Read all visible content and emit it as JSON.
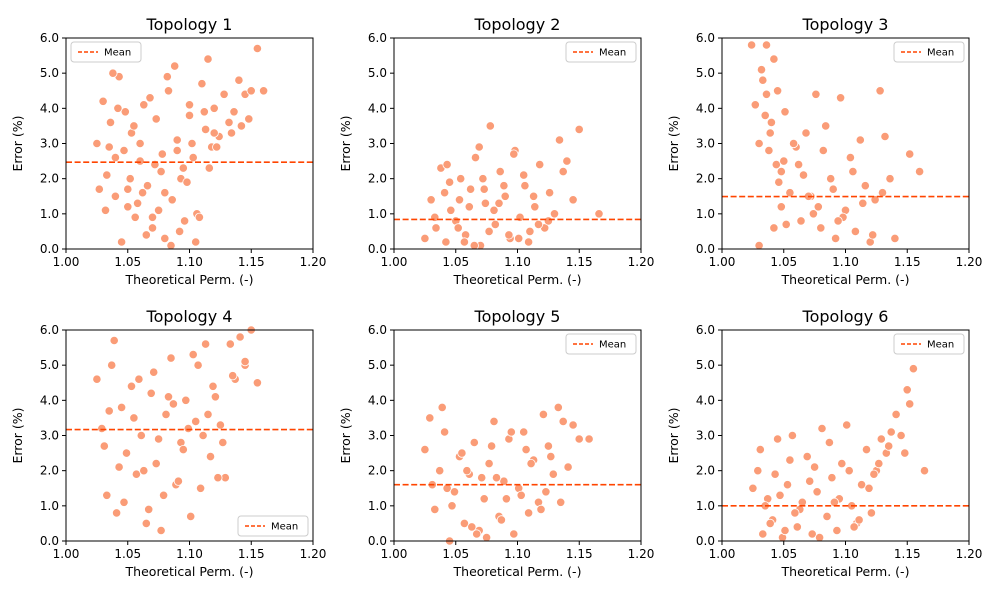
{
  "figure": {
    "background": "#ffffff",
    "marker_color": "#fa9c77",
    "marker_edge": "#ffffff",
    "mean_color": "#ff4500"
  },
  "chart_data": [
    {
      "type": "scatter",
      "title": "Topology 1",
      "xlabel": "Theoretical Perm. (-)",
      "ylabel": "Error (%)",
      "xlim": [
        1.0,
        1.2
      ],
      "ylim": [
        0.0,
        6.0
      ],
      "xticks": [
        "1.00",
        "1.05",
        "1.10",
        "1.15",
        "1.20"
      ],
      "yticks": [
        "0.0",
        "1.0",
        "2.0",
        "3.0",
        "4.0",
        "5.0",
        "6.0"
      ],
      "mean": 2.47,
      "legend": {
        "label": "Mean",
        "position": "upper-left"
      },
      "x": [
        1.025,
        1.03,
        1.033,
        1.036,
        1.04,
        1.043,
        1.047,
        1.05,
        1.053,
        1.056,
        1.06,
        1.063,
        1.066,
        1.07,
        1.073,
        1.077,
        1.08,
        1.083,
        1.086,
        1.09,
        1.093,
        1.096,
        1.1,
        1.103,
        1.106,
        1.11,
        1.113,
        1.116,
        1.12,
        1.124,
        1.128,
        1.132,
        1.136,
        1.14,
        1.145,
        1.15,
        1.155,
        1.16,
        1.027,
        1.038,
        1.048,
        1.058,
        1.068,
        1.078,
        1.088,
        1.098,
        1.108,
        1.118,
        1.045,
        1.065,
        1.085,
        1.105,
        1.035,
        1.075,
        1.095,
        1.115,
        1.055,
        1.042,
        1.072,
        1.102,
        1.062,
        1.082,
        1.092,
        1.052,
        1.032,
        1.112,
        1.122,
        1.134,
        1.142,
        1.148,
        1.04,
        1.06,
        1.08,
        1.1,
        1.12,
        1.07,
        1.09,
        1.05
      ],
      "y": [
        3.0,
        4.2,
        2.1,
        3.6,
        1.5,
        4.9,
        2.8,
        1.2,
        3.3,
        0.9,
        2.5,
        4.1,
        1.8,
        0.6,
        3.7,
        2.2,
        0.3,
        4.5,
        1.4,
        3.1,
        2.0,
        0.8,
        3.8,
        2.6,
        1.0,
        4.7,
        3.4,
        2.3,
        4.0,
        3.2,
        4.4,
        3.6,
        3.9,
        4.8,
        4.4,
        4.5,
        5.7,
        4.5,
        1.7,
        5.0,
        3.9,
        1.3,
        4.3,
        2.7,
        5.2,
        1.9,
        0.9,
        2.9,
        0.2,
        0.4,
        0.1,
        0.2,
        2.9,
        1.1,
        2.3,
        5.4,
        3.5,
        4.0,
        2.4,
        3.0,
        1.6,
        4.9,
        0.5,
        2.0,
        1.1,
        3.9,
        2.9,
        3.3,
        3.5,
        3.7,
        2.6,
        3.0,
        1.6,
        4.1,
        3.3,
        0.9,
        2.8,
        1.7
      ]
    },
    {
      "type": "scatter",
      "title": "Topology 2",
      "xlabel": "Theoretical Perm. (-)",
      "ylabel": "Error (%)",
      "xlim": [
        1.0,
        1.2
      ],
      "ylim": [
        0.0,
        6.0
      ],
      "xticks": [
        "1.00",
        "1.05",
        "1.10",
        "1.15",
        "1.20"
      ],
      "yticks": [
        "0.0",
        "1.0",
        "2.0",
        "3.0",
        "4.0",
        "5.0",
        "6.0"
      ],
      "mean": 0.84,
      "legend": {
        "label": "Mean",
        "position": "upper-right"
      },
      "x": [
        1.025,
        1.03,
        1.034,
        1.038,
        1.042,
        1.046,
        1.05,
        1.054,
        1.058,
        1.062,
        1.066,
        1.07,
        1.074,
        1.078,
        1.082,
        1.086,
        1.09,
        1.094,
        1.098,
        1.102,
        1.106,
        1.11,
        1.114,
        1.118,
        1.122,
        1.126,
        1.13,
        1.134,
        1.14,
        1.145,
        1.15,
        1.166,
        1.033,
        1.045,
        1.057,
        1.069,
        1.081,
        1.093,
        1.105,
        1.117,
        1.041,
        1.061,
        1.077,
        1.089,
        1.101,
        1.113,
        1.052,
        1.072,
        1.097,
        1.125,
        1.137,
        1.065,
        1.085,
        1.109,
        1.043,
        1.073,
        1.053
      ],
      "y": [
        0.3,
        1.4,
        0.6,
        2.3,
        0.2,
        1.1,
        0.8,
        2.0,
        0.4,
        1.7,
        2.6,
        0.1,
        1.3,
        3.5,
        0.7,
        2.2,
        1.5,
        0.3,
        2.8,
        0.9,
        1.8,
        0.5,
        1.2,
        2.4,
        0.6,
        1.6,
        1.0,
        3.1,
        2.5,
        1.4,
        3.4,
        1.0,
        0.9,
        1.9,
        0.2,
        2.9,
        1.1,
        0.4,
        2.1,
        0.7,
        1.6,
        1.2,
        0.5,
        1.8,
        0.3,
        1.5,
        0.6,
        2.0,
        2.7,
        0.8,
        2.2,
        0.1,
        1.3,
        0.2,
        2.4,
        1.7,
        1.4
      ]
    },
    {
      "type": "scatter",
      "title": "Topology 3",
      "xlabel": "Theoretical Perm. (-)",
      "ylabel": "Error (%)",
      "xlim": [
        1.0,
        1.2
      ],
      "ylim": [
        0.0,
        6.0
      ],
      "xticks": [
        "1.00",
        "1.05",
        "1.10",
        "1.15",
        "1.20"
      ],
      "yticks": [
        "0.0",
        "1.0",
        "2.0",
        "3.0",
        "4.0",
        "5.0",
        "6.0"
      ],
      "mean": 1.49,
      "legend": {
        "label": "Mean",
        "position": "upper-right"
      },
      "x": [
        1.024,
        1.027,
        1.03,
        1.033,
        1.036,
        1.039,
        1.042,
        1.045,
        1.048,
        1.051,
        1.055,
        1.06,
        1.064,
        1.068,
        1.072,
        1.076,
        1.08,
        1.084,
        1.088,
        1.092,
        1.096,
        1.1,
        1.104,
        1.108,
        1.112,
        1.116,
        1.12,
        1.124,
        1.128,
        1.132,
        1.136,
        1.14,
        1.152,
        1.16,
        1.032,
        1.036,
        1.04,
        1.044,
        1.048,
        1.052,
        1.058,
        1.066,
        1.074,
        1.082,
        1.09,
        1.098,
        1.106,
        1.114,
        1.122,
        1.13,
        1.038,
        1.042,
        1.046,
        1.062,
        1.078,
        1.094,
        1.03,
        1.035,
        1.05,
        1.07
      ],
      "y": [
        5.8,
        4.1,
        3.0,
        4.8,
        5.8,
        3.3,
        5.4,
        4.5,
        2.2,
        3.9,
        1.6,
        2.9,
        0.8,
        3.3,
        1.5,
        4.4,
        0.6,
        3.5,
        2.0,
        0.3,
        4.3,
        1.1,
        2.6,
        0.5,
        3.1,
        1.8,
        0.2,
        1.4,
        4.5,
        3.2,
        2.0,
        0.3,
        2.7,
        2.2,
        5.1,
        4.4,
        3.6,
        2.4,
        1.2,
        0.7,
        3.0,
        2.1,
        1.0,
        2.8,
        1.7,
        0.9,
        2.2,
        1.3,
        0.4,
        1.6,
        2.8,
        0.6,
        1.9,
        2.4,
        1.2,
        0.8,
        0.1,
        3.8,
        2.5,
        1.5
      ]
    },
    {
      "type": "scatter",
      "title": "Topology 4",
      "xlabel": "Theoretical Perm. (-)",
      "ylabel": "Error (%)",
      "xlim": [
        1.0,
        1.2
      ],
      "ylim": [
        0.0,
        6.0
      ],
      "xticks": [
        "1.00",
        "1.05",
        "1.10",
        "1.15",
        "1.20"
      ],
      "yticks": [
        "0.0",
        "1.0",
        "2.0",
        "3.0",
        "4.0",
        "5.0",
        "6.0"
      ],
      "mean": 3.17,
      "legend": {
        "label": "Mean",
        "position": "lower-right"
      },
      "x": [
        1.025,
        1.029,
        1.033,
        1.037,
        1.041,
        1.045,
        1.049,
        1.053,
        1.057,
        1.061,
        1.065,
        1.069,
        1.073,
        1.077,
        1.081,
        1.085,
        1.089,
        1.093,
        1.097,
        1.101,
        1.105,
        1.109,
        1.113,
        1.117,
        1.121,
        1.125,
        1.129,
        1.133,
        1.137,
        1.141,
        1.145,
        1.15,
        1.155,
        1.031,
        1.039,
        1.047,
        1.055,
        1.063,
        1.071,
        1.079,
        1.087,
        1.095,
        1.103,
        1.111,
        1.119,
        1.127,
        1.035,
        1.043,
        1.059,
        1.067,
        1.075,
        1.083,
        1.091,
        1.099,
        1.107,
        1.115,
        1.123,
        1.135,
        1.145
      ],
      "y": [
        4.6,
        3.2,
        1.3,
        5.0,
        0.8,
        3.8,
        2.5,
        4.4,
        1.9,
        3.0,
        0.5,
        4.2,
        2.2,
        0.3,
        3.6,
        5.2,
        1.6,
        2.8,
        4.0,
        0.7,
        3.4,
        1.5,
        5.6,
        2.4,
        4.1,
        3.3,
        1.8,
        5.6,
        4.6,
        5.8,
        5.0,
        6.0,
        4.5,
        2.7,
        5.7,
        1.1,
        3.5,
        2.0,
        4.8,
        1.3,
        3.9,
        2.6,
        5.3,
        3.0,
        4.4,
        2.8,
        3.7,
        2.1,
        4.6,
        0.9,
        2.9,
        4.1,
        1.7,
        3.2,
        5.0,
        3.6,
        1.8,
        4.7,
        5.1
      ]
    },
    {
      "type": "scatter",
      "title": "Topology 5",
      "xlabel": "Theoretical Perm. (-)",
      "ylabel": "Error (%)",
      "xlim": [
        1.0,
        1.2
      ],
      "ylim": [
        0.0,
        6.0
      ],
      "xticks": [
        "1.00",
        "1.05",
        "1.10",
        "1.15",
        "1.20"
      ],
      "yticks": [
        "0.0",
        "1.0",
        "2.0",
        "3.0",
        "4.0",
        "5.0",
        "6.0"
      ],
      "mean": 1.6,
      "legend": {
        "label": "Mean",
        "position": "upper-right"
      },
      "x": [
        1.025,
        1.029,
        1.033,
        1.037,
        1.041,
        1.045,
        1.049,
        1.053,
        1.057,
        1.061,
        1.065,
        1.069,
        1.073,
        1.077,
        1.081,
        1.085,
        1.089,
        1.093,
        1.097,
        1.101,
        1.105,
        1.109,
        1.113,
        1.117,
        1.121,
        1.125,
        1.129,
        1.133,
        1.137,
        1.141,
        1.145,
        1.15,
        1.158,
        1.031,
        1.039,
        1.047,
        1.055,
        1.063,
        1.071,
        1.079,
        1.087,
        1.095,
        1.103,
        1.111,
        1.119,
        1.127,
        1.043,
        1.059,
        1.075,
        1.091,
        1.107,
        1.123,
        1.135,
        1.067,
        1.083
      ],
      "y": [
        2.6,
        3.5,
        0.9,
        2.0,
        3.1,
        0.0,
        1.4,
        2.4,
        0.5,
        1.9,
        2.8,
        0.3,
        1.2,
        2.2,
        3.4,
        0.7,
        1.7,
        2.9,
        0.2,
        1.5,
        3.1,
        0.8,
        2.3,
        1.1,
        3.6,
        2.7,
        1.9,
        3.8,
        3.4,
        2.1,
        3.3,
        2.9,
        2.9,
        1.6,
        3.8,
        1.0,
        2.5,
        0.4,
        1.8,
        2.7,
        0.6,
        3.1,
        1.3,
        2.2,
        0.9,
        2.4,
        1.5,
        2.0,
        0.1,
        1.2,
        2.6,
        1.4,
        1.1,
        0.2,
        1.8
      ]
    },
    {
      "type": "scatter",
      "title": "Topology 6",
      "xlabel": "Theoretical Perm. (-)",
      "ylabel": "Error (%)",
      "xlim": [
        1.0,
        1.2
      ],
      "ylim": [
        0.0,
        6.0
      ],
      "xticks": [
        "1.00",
        "1.05",
        "1.10",
        "1.15",
        "1.20"
      ],
      "yticks": [
        "0.0",
        "1.0",
        "2.0",
        "3.0",
        "4.0",
        "5.0",
        "6.0"
      ],
      "mean": 1.0,
      "legend": {
        "label": "Mean",
        "position": "upper-right"
      },
      "x": [
        1.025,
        1.029,
        1.033,
        1.037,
        1.041,
        1.045,
        1.049,
        1.053,
        1.057,
        1.061,
        1.065,
        1.069,
        1.073,
        1.077,
        1.081,
        1.085,
        1.089,
        1.093,
        1.097,
        1.101,
        1.105,
        1.109,
        1.113,
        1.117,
        1.121,
        1.125,
        1.129,
        1.133,
        1.137,
        1.141,
        1.145,
        1.15,
        1.155,
        1.164,
        1.031,
        1.039,
        1.047,
        1.055,
        1.063,
        1.071,
        1.079,
        1.087,
        1.095,
        1.103,
        1.111,
        1.119,
        1.127,
        1.035,
        1.043,
        1.051,
        1.059,
        1.075,
        1.091,
        1.107,
        1.123,
        1.135,
        1.148,
        1.152
      ],
      "y": [
        1.5,
        2.0,
        0.2,
        1.2,
        0.6,
        2.9,
        0.1,
        1.6,
        3.0,
        0.4,
        1.1,
        2.4,
        0.2,
        1.4,
        3.2,
        0.7,
        1.8,
        0.3,
        2.2,
        3.3,
        1.0,
        0.5,
        1.6,
        2.6,
        0.8,
        2.0,
        2.9,
        2.5,
        3.1,
        3.6,
        3.0,
        4.3,
        4.9,
        2.0,
        2.6,
        0.5,
        1.3,
        2.3,
        0.9,
        1.7,
        0.1,
        2.8,
        1.2,
        2.0,
        0.6,
        1.5,
        2.2,
        1.0,
        1.9,
        0.3,
        0.8,
        2.1,
        1.1,
        0.4,
        1.9,
        2.7,
        2.5,
        3.9
      ]
    }
  ]
}
